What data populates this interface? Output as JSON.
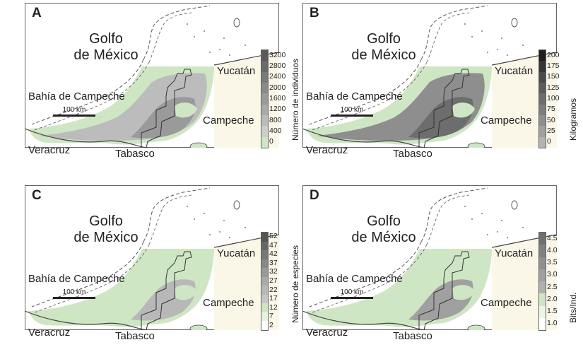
{
  "labels": {
    "gulf": [
      "Golfo",
      "de México"
    ],
    "bay": "Bahía de Campeche",
    "yucatan": "Yucatán",
    "campeche": "Campeche",
    "veracruz": "Veracruz",
    "tabasco": "Tabasco",
    "scale": "100 km"
  },
  "colors": {
    "land": "#fbf7e8",
    "sea": "#ffffff",
    "lowest": "#cfe6c4",
    "boundary": "#555555"
  },
  "panels": [
    {
      "letter": "A",
      "legend_title": "Número de individuos",
      "legend_ticks": [
        "3200",
        "2800",
        "2400",
        "2000",
        "1600",
        "1200",
        "800",
        "400",
        "0"
      ],
      "legend_colors": [
        "#5a5a5a",
        "#6a6a6a",
        "#7a7a7a",
        "#8a8a8a",
        "#9a9a9a",
        "#aaaaaa",
        "#bcbcbc",
        "#cccccc",
        "#cfe6c4"
      ]
    },
    {
      "letter": "B",
      "legend_title": "Kilogramos",
      "legend_ticks": [
        "200",
        "175",
        "150",
        "125",
        "100",
        "75",
        "50",
        "25",
        "0"
      ],
      "legend_colors": [
        "#1e1e1e",
        "#363636",
        "#4a4a4a",
        "#5c5c5c",
        "#6d6d6d",
        "#7d7d7d",
        "#8e8e8e",
        "#a0a0a0",
        "#b4b4b4"
      ]
    },
    {
      "letter": "C",
      "legend_title": "Número de especies",
      "legend_ticks": [
        "52",
        "47",
        "42",
        "37",
        "32",
        "27",
        "22",
        "17",
        "12",
        "7",
        "2"
      ],
      "legend_colors": [
        "#555555",
        "#666666",
        "#777777",
        "#888888",
        "#999999",
        "#aaaaaa",
        "#b8b8b8",
        "#c6c6c6",
        "#cfe6c4",
        "#e8f2e0",
        "#ffffff"
      ]
    },
    {
      "letter": "D",
      "legend_title": "Bits/Ind.",
      "legend_ticks": [
        "4.5",
        "4.0",
        "3.5",
        "3.0",
        "2.5",
        "2.0",
        "1.5",
        "1.0"
      ],
      "legend_colors": [
        "#707070",
        "#808080",
        "#909090",
        "#a0a0a0",
        "#b0b0b0",
        "#cfe6c4",
        "#eef5e8",
        "#ffffff"
      ]
    }
  ]
}
